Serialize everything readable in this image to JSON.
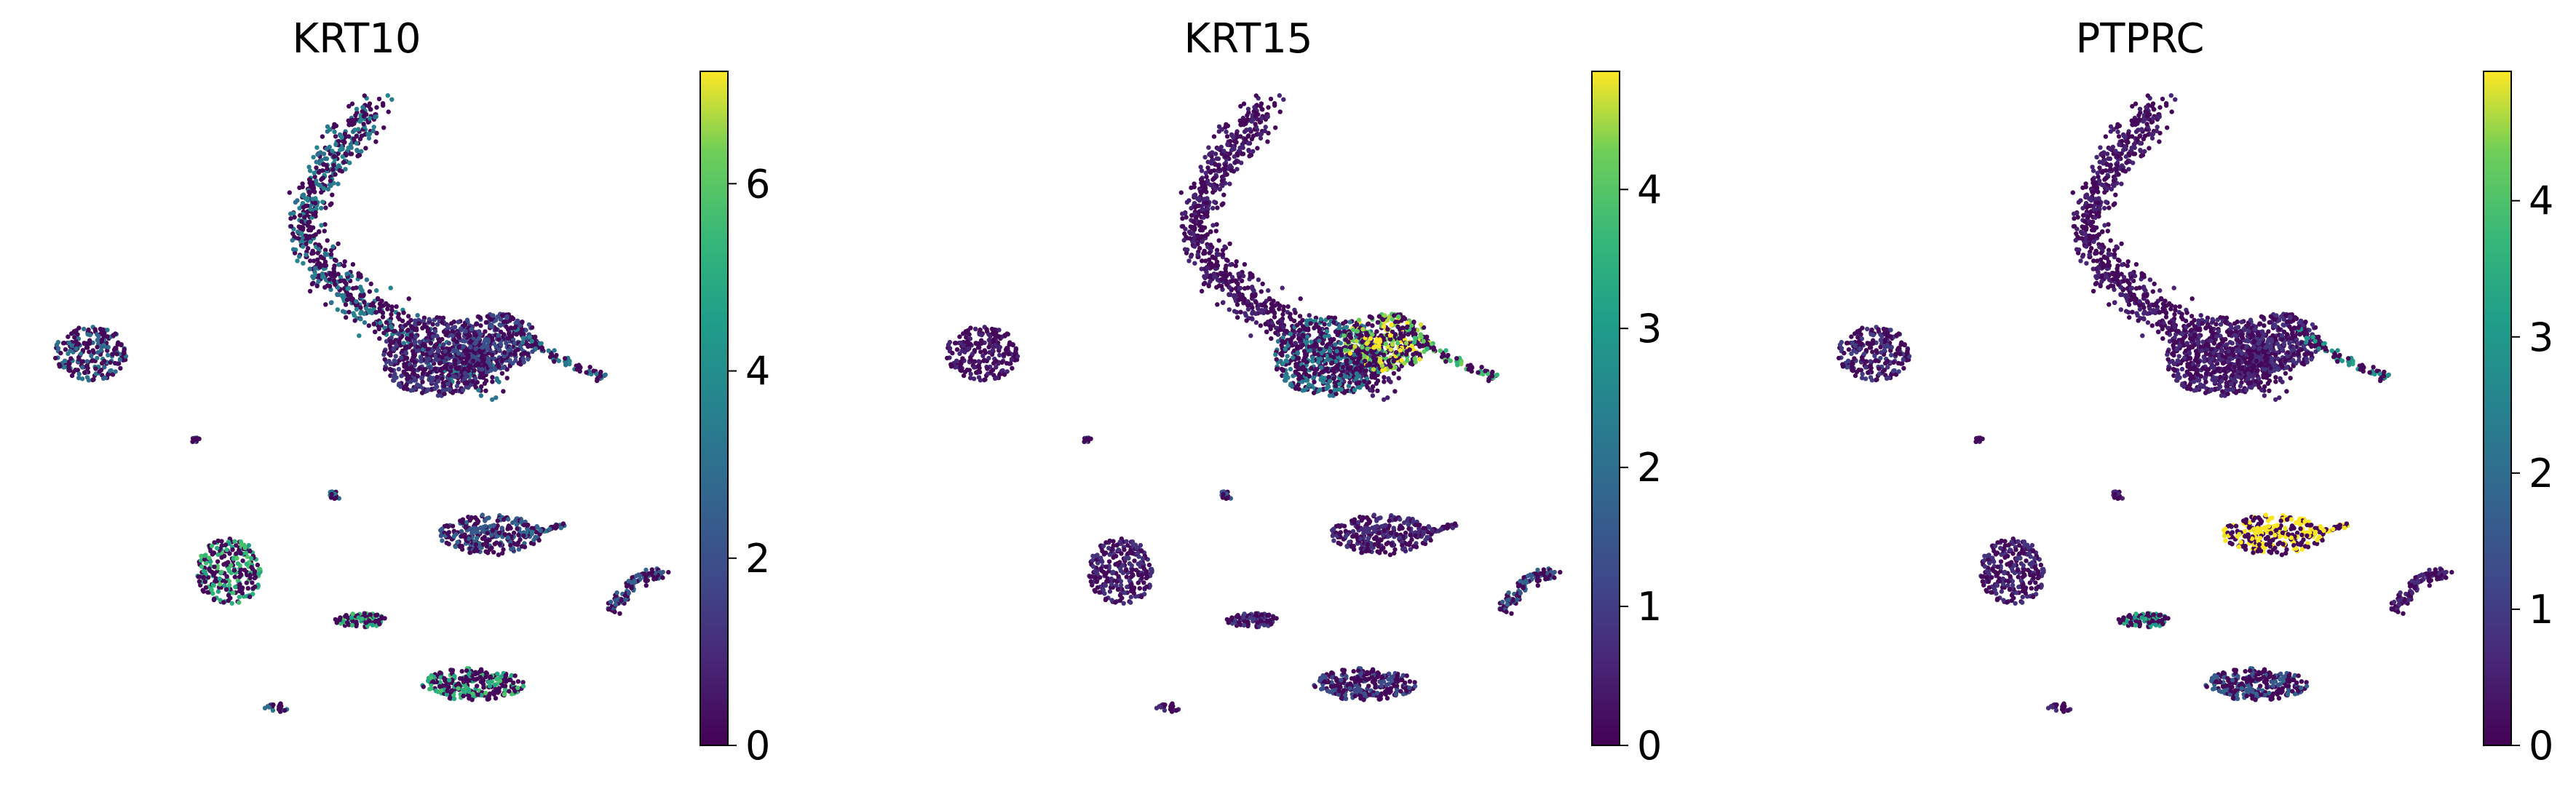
{
  "chart_data": [
    {
      "type": "scatter",
      "title": "KRT10",
      "colorbar": {
        "colormap": "viridis",
        "min": 0,
        "max": 7.2,
        "ticks": [
          "0",
          "2",
          "4",
          "6"
        ]
      },
      "high_expression_clusters": [
        "upper-right arm of main cluster",
        "small cluster lower-left",
        "small cluster bottom-center",
        "bottom cluster"
      ]
    },
    {
      "type": "scatter",
      "title": "KRT15",
      "colorbar": {
        "colormap": "viridis",
        "min": 0,
        "max": 4.85,
        "ticks": [
          "0",
          "1",
          "2",
          "3",
          "4"
        ]
      },
      "high_expression_clusters": [
        "lower-right lobe of main cluster",
        "arm tip of main cluster"
      ]
    },
    {
      "type": "scatter",
      "title": "PTPRC",
      "colorbar": {
        "colormap": "viridis",
        "min": 0,
        "max": 4.95,
        "ticks": [
          "0",
          "1",
          "2",
          "3",
          "4"
        ]
      },
      "high_expression_clusters": [
        "middle elongated cluster",
        "tip of main cluster arm"
      ]
    }
  ],
  "colors": {
    "viridis_low": "#440154",
    "viridis_mid": "#21918c",
    "viridis_high": "#fde725"
  }
}
